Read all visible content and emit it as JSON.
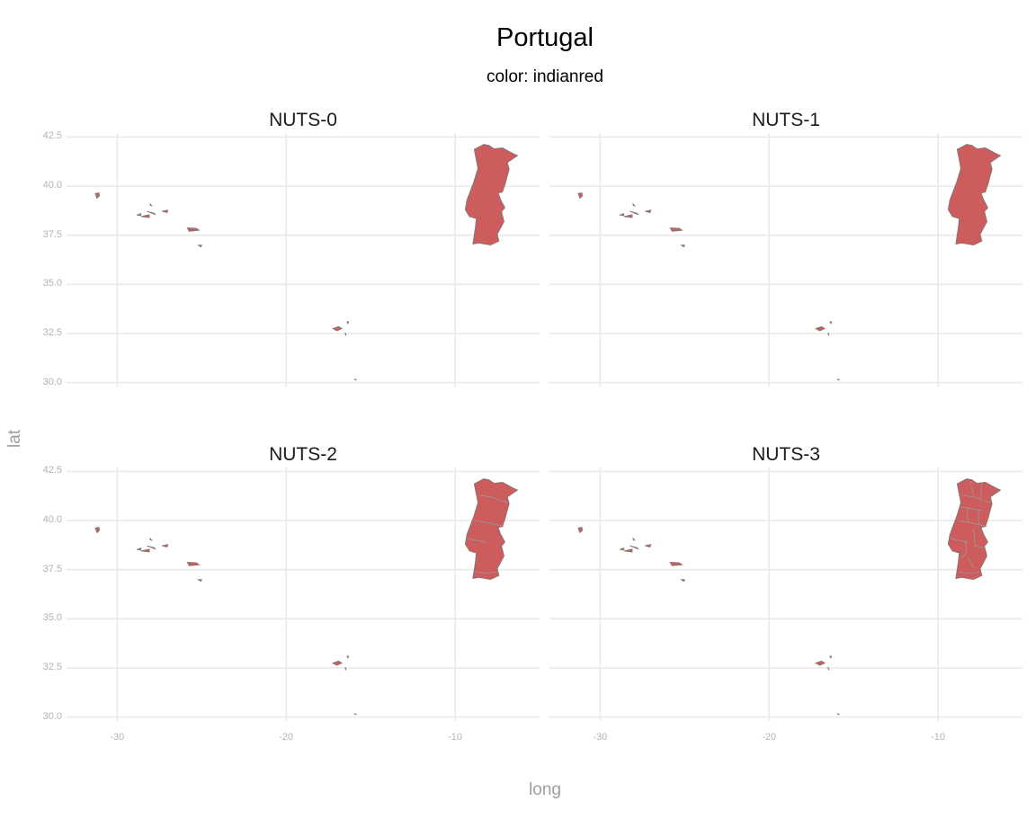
{
  "title": "Portugal",
  "subtitle": "color: indianred",
  "fill_color": "#CD5C5C",
  "border_color": "#7a7a7a",
  "grid_color": "#ebebeb",
  "chart_data": {
    "type": "map",
    "xlabel": "long",
    "ylabel": "lat",
    "xlim": [
      -33.0,
      -5.0
    ],
    "ylim": [
      29.8,
      42.7
    ],
    "x_ticks": [
      -30,
      -20,
      -10
    ],
    "x_tick_labels": [
      "-30",
      "-20",
      "-10"
    ],
    "y_ticks": [
      30.0,
      32.5,
      35.0,
      37.5,
      40.0,
      42.5
    ],
    "y_tick_labels": [
      "30.0",
      "32.5",
      "35.0",
      "37.5",
      "40.0",
      "42.5"
    ],
    "grid": true,
    "panels": [
      {
        "label": "NUTS-0",
        "internal_borders": []
      },
      {
        "label": "NUTS-1",
        "internal_borders": []
      },
      {
        "label": "NUTS-2",
        "internal_borders": [
          [
            [
              -8.6,
              41.3
            ],
            [
              -7.9,
              41.2
            ],
            [
              -7.2,
              41.0
            ],
            [
              -6.9,
              40.9
            ]
          ],
          [
            [
              -8.8,
              40.0
            ],
            [
              -8.2,
              39.9
            ],
            [
              -7.6,
              39.8
            ],
            [
              -7.1,
              39.7
            ]
          ],
          [
            [
              -9.3,
              39.1
            ],
            [
              -8.8,
              39.0
            ],
            [
              -8.2,
              38.9
            ]
          ],
          [
            [
              -8.8,
              37.4
            ],
            [
              -8.2,
              37.3
            ],
            [
              -7.5,
              37.4
            ]
          ]
        ]
      },
      {
        "label": "NUTS-3",
        "internal_borders": [
          [
            [
              -8.6,
              41.3
            ],
            [
              -7.9,
              41.2
            ],
            [
              -7.2,
              41.0
            ],
            [
              -6.9,
              40.9
            ]
          ],
          [
            [
              -8.1,
              42.0
            ],
            [
              -7.9,
              41.3
            ]
          ],
          [
            [
              -7.4,
              41.9
            ],
            [
              -7.5,
              41.1
            ]
          ],
          [
            [
              -8.7,
              40.7
            ],
            [
              -8.0,
              40.6
            ],
            [
              -7.3,
              40.5
            ]
          ],
          [
            [
              -8.8,
              40.0
            ],
            [
              -8.2,
              39.9
            ],
            [
              -7.6,
              39.8
            ],
            [
              -7.1,
              39.7
            ]
          ],
          [
            [
              -8.3,
              40.6
            ],
            [
              -8.2,
              39.9
            ]
          ],
          [
            [
              -7.6,
              40.5
            ],
            [
              -7.6,
              39.8
            ]
          ],
          [
            [
              -9.3,
              39.1
            ],
            [
              -8.8,
              39.0
            ],
            [
              -8.2,
              38.9
            ]
          ],
          [
            [
              -8.4,
              39.0
            ],
            [
              -8.3,
              38.4
            ],
            [
              -8.6,
              38.1
            ]
          ],
          [
            [
              -7.9,
              39.6
            ],
            [
              -7.8,
              38.7
            ],
            [
              -7.2,
              38.6
            ]
          ],
          [
            [
              -8.8,
              37.4
            ],
            [
              -8.2,
              37.3
            ],
            [
              -7.5,
              37.4
            ]
          ],
          [
            [
              -8.2,
              38.1
            ],
            [
              -7.9,
              37.6
            ]
          ]
        ]
      }
    ],
    "regions": {
      "mainland": [
        [
          -8.87,
          41.87
        ],
        [
          -8.3,
          42.13
        ],
        [
          -8.0,
          42.08
        ],
        [
          -7.7,
          41.9
        ],
        [
          -7.2,
          41.95
        ],
        [
          -6.55,
          41.65
        ],
        [
          -6.3,
          41.55
        ],
        [
          -6.9,
          41.2
        ],
        [
          -6.8,
          40.85
        ],
        [
          -6.95,
          40.4
        ],
        [
          -7.0,
          40.2
        ],
        [
          -7.2,
          39.7
        ],
        [
          -7.45,
          39.65
        ],
        [
          -7.3,
          39.3
        ],
        [
          -7.05,
          38.9
        ],
        [
          -7.25,
          38.7
        ],
        [
          -7.1,
          38.2
        ],
        [
          -7.5,
          37.55
        ],
        [
          -7.4,
          37.2
        ],
        [
          -7.9,
          37.0
        ],
        [
          -8.6,
          37.1
        ],
        [
          -8.95,
          37.05
        ],
        [
          -8.8,
          37.9
        ],
        [
          -8.75,
          38.35
        ],
        [
          -9.15,
          38.45
        ],
        [
          -9.4,
          38.8
        ],
        [
          -9.3,
          39.3
        ],
        [
          -8.9,
          40.2
        ],
        [
          -8.65,
          40.9
        ],
        [
          -8.87,
          41.87
        ]
      ],
      "islands": [
        [
          [
            -31.3,
            39.62
          ],
          [
            -31.08,
            39.66
          ],
          [
            -31.05,
            39.5
          ],
          [
            -31.2,
            39.38
          ],
          [
            -31.3,
            39.62
          ]
        ],
        [
          [
            -28.85,
            38.53
          ],
          [
            -28.6,
            38.6
          ],
          [
            -28.6,
            38.5
          ],
          [
            -28.85,
            38.53
          ]
        ],
        [
          [
            -28.6,
            38.45
          ],
          [
            -28.1,
            38.4
          ],
          [
            -28.1,
            38.55
          ],
          [
            -28.6,
            38.45
          ]
        ],
        [
          [
            -28.25,
            38.72
          ],
          [
            -27.75,
            38.55
          ],
          [
            -27.8,
            38.62
          ],
          [
            -28.25,
            38.72
          ]
        ],
        [
          [
            -28.05,
            39.1
          ],
          [
            -27.95,
            39.0
          ],
          [
            -28.05,
            39.02
          ],
          [
            -28.05,
            39.1
          ]
        ],
        [
          [
            -27.35,
            38.72
          ],
          [
            -27.05,
            38.65
          ],
          [
            -27.0,
            38.78
          ],
          [
            -27.35,
            38.72
          ]
        ],
        [
          [
            -25.85,
            37.88
          ],
          [
            -25.3,
            37.85
          ],
          [
            -25.15,
            37.75
          ],
          [
            -25.75,
            37.7
          ],
          [
            -25.85,
            37.88
          ]
        ],
        [
          [
            -25.2,
            37.0
          ],
          [
            -25.0,
            37.0
          ],
          [
            -25.05,
            36.9
          ],
          [
            -25.2,
            37.0
          ]
        ],
        [
          [
            -17.25,
            32.75
          ],
          [
            -16.9,
            32.85
          ],
          [
            -16.7,
            32.75
          ],
          [
            -17.0,
            32.63
          ],
          [
            -17.25,
            32.75
          ]
        ],
        [
          [
            -16.4,
            33.1
          ],
          [
            -16.3,
            33.1
          ],
          [
            -16.35,
            33.0
          ],
          [
            -16.4,
            33.1
          ]
        ],
        [
          [
            -16.5,
            32.55
          ],
          [
            -16.45,
            32.4
          ],
          [
            -16.5,
            32.45
          ],
          [
            -16.5,
            32.55
          ]
        ],
        [
          [
            -15.95,
            30.18
          ],
          [
            -15.85,
            30.15
          ],
          [
            -15.9,
            30.12
          ],
          [
            -15.95,
            30.18
          ]
        ]
      ]
    }
  }
}
